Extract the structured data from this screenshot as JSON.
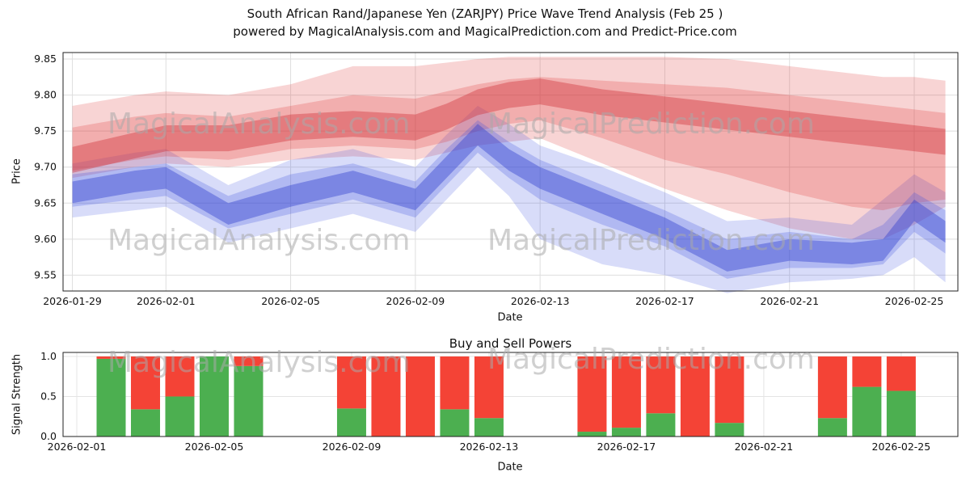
{
  "page": {
    "title_line1": "South African Rand/Japanese Yen (ZARJPY) Price Wave Trend Analysis (Feb 25 )",
    "title_line2": "powered by MagicalAnalysis.com and MagicalPrediction.com and Predict-Price.com"
  },
  "watermarks": {
    "analysis": "MagicalAnalysis.com",
    "prediction": "MagicalPrediction.com"
  },
  "chart_data": [
    {
      "type": "area",
      "title": "Price Wave Trend",
      "xlabel": "Date",
      "ylabel": "Price",
      "ylim": [
        9.528,
        9.859
      ],
      "yticks": [
        9.55,
        9.6,
        9.65,
        9.7,
        9.75,
        9.8,
        9.85
      ],
      "x_domain_days": [
        -0.3,
        28.4
      ],
      "xtick_days": [
        0,
        3,
        7,
        11,
        15,
        19,
        23,
        27
      ],
      "xtick_labels": [
        "2026-01-29",
        "2026-02-01",
        "2026-02-05",
        "2026-02-09",
        "2026-02-13",
        "2026-02-17",
        "2026-02-21",
        "2026-02-25"
      ],
      "grid": true,
      "days": [
        0,
        2,
        3,
        5,
        7,
        9,
        11,
        12,
        13,
        14,
        15,
        17,
        19,
        21,
        23,
        25,
        26,
        27,
        28
      ],
      "series": [
        {
          "name": "sell-pressure-band-outer",
          "color": "#e03c3c",
          "opacity": 0.22,
          "top": [
            9.785,
            9.8,
            9.805,
            9.8,
            9.815,
            9.84,
            9.84,
            9.845,
            9.85,
            9.853,
            9.853,
            9.853,
            9.853,
            9.85,
            9.84,
            9.83,
            9.825,
            9.825,
            9.82
          ],
          "bottom": [
            9.685,
            9.7,
            9.705,
            9.7,
            9.71,
            9.715,
            9.71,
            9.72,
            9.73,
            9.735,
            9.74,
            9.705,
            9.67,
            9.64,
            9.615,
            9.6,
            9.6,
            9.62,
            9.645
          ]
        },
        {
          "name": "buy-pressure-band-outer",
          "color": "#3c50e0",
          "opacity": 0.2,
          "top": [
            9.705,
            9.72,
            9.725,
            9.675,
            9.71,
            9.725,
            9.7,
            9.745,
            9.785,
            9.76,
            9.73,
            9.7,
            9.665,
            9.625,
            9.63,
            9.62,
            9.655,
            9.69,
            9.665
          ],
          "bottom": [
            9.63,
            9.64,
            9.645,
            9.595,
            9.615,
            9.635,
            9.61,
            9.655,
            9.7,
            9.66,
            9.6,
            9.565,
            9.55,
            9.525,
            9.54,
            9.545,
            9.55,
            9.575,
            9.54
          ]
        },
        {
          "name": "sell-pressure-band-mid",
          "color": "#e03c3c",
          "opacity": 0.25,
          "top": [
            9.755,
            9.77,
            9.775,
            9.77,
            9.785,
            9.8,
            9.795,
            9.805,
            9.815,
            9.822,
            9.825,
            9.82,
            9.815,
            9.81,
            9.8,
            9.79,
            9.785,
            9.78,
            9.775
          ],
          "bottom": [
            9.695,
            9.71,
            9.715,
            9.71,
            9.725,
            9.73,
            9.725,
            9.735,
            9.75,
            9.76,
            9.765,
            9.74,
            9.71,
            9.69,
            9.665,
            9.645,
            9.64,
            9.65,
            9.655
          ]
        },
        {
          "name": "buy-pressure-band-mid",
          "color": "#3c50e0",
          "opacity": 0.25,
          "top": [
            9.69,
            9.7,
            9.705,
            9.66,
            9.69,
            9.705,
            9.68,
            9.725,
            9.765,
            9.735,
            9.71,
            9.675,
            9.64,
            9.6,
            9.61,
            9.6,
            9.62,
            9.665,
            9.64
          ],
          "bottom": [
            9.645,
            9.655,
            9.66,
            9.615,
            9.635,
            9.655,
            9.63,
            9.675,
            9.72,
            9.685,
            9.655,
            9.62,
            9.59,
            9.545,
            9.56,
            9.56,
            9.565,
            9.61,
            9.58
          ]
        },
        {
          "name": "sell-pressure-band-core",
          "color": "#d03038",
          "opacity": 0.4,
          "top": [
            9.728,
            9.748,
            9.758,
            9.758,
            9.773,
            9.778,
            9.773,
            9.788,
            9.808,
            9.818,
            9.823,
            9.808,
            9.798,
            9.788,
            9.778,
            9.768,
            9.763,
            9.758,
            9.753
          ],
          "bottom": [
            9.692,
            9.712,
            9.722,
            9.722,
            9.737,
            9.742,
            9.737,
            9.752,
            9.772,
            9.782,
            9.787,
            9.772,
            9.762,
            9.752,
            9.742,
            9.732,
            9.727,
            9.722,
            9.717
          ]
        },
        {
          "name": "buy-pressure-band-core",
          "color": "#3040d0",
          "opacity": 0.42,
          "top": [
            9.68,
            9.695,
            9.7,
            9.65,
            9.675,
            9.695,
            9.67,
            9.715,
            9.76,
            9.725,
            9.7,
            9.665,
            9.63,
            9.585,
            9.6,
            9.595,
            9.6,
            9.655,
            9.625
          ],
          "bottom": [
            9.65,
            9.665,
            9.67,
            9.62,
            9.645,
            9.665,
            9.64,
            9.685,
            9.73,
            9.695,
            9.67,
            9.635,
            9.6,
            9.555,
            9.57,
            9.565,
            9.57,
            9.625,
            9.595
          ]
        }
      ]
    },
    {
      "type": "bar",
      "title": "Buy and Sell Powers",
      "xlabel": "Date",
      "ylabel": "Signal Strength",
      "ylim": [
        0,
        1.05
      ],
      "yticks": [
        0.0,
        0.5,
        1.0
      ],
      "x_domain_days": [
        -0.4,
        25.65
      ],
      "xtick_days": [
        0,
        4,
        8,
        12,
        16,
        20,
        24
      ],
      "xtick_labels": [
        "2026-02-01",
        "2026-02-05",
        "2026-02-09",
        "2026-02-13",
        "2026-02-17",
        "2026-02-21",
        "2026-02-25"
      ],
      "grid": true,
      "colors": {
        "buy": "#4caf50",
        "sell": "#f44336"
      },
      "bars": [
        {
          "date": "2026-02-02",
          "day": 1,
          "buy": 0.97,
          "sell": 0.03
        },
        {
          "date": "2026-02-03",
          "day": 2,
          "buy": 0.34,
          "sell": 0.66
        },
        {
          "date": "2026-02-04",
          "day": 3,
          "buy": 0.5,
          "sell": 0.5
        },
        {
          "date": "2026-02-05",
          "day": 4,
          "buy": 1.0,
          "sell": 0.0
        },
        {
          "date": "2026-02-06",
          "day": 5,
          "buy": 0.88,
          "sell": 0.12
        },
        {
          "date": "2026-02-09",
          "day": 8,
          "buy": 0.35,
          "sell": 0.65
        },
        {
          "date": "2026-02-10",
          "day": 9,
          "buy": 0.0,
          "sell": 1.0
        },
        {
          "date": "2026-02-11",
          "day": 10,
          "buy": 0.0,
          "sell": 1.0
        },
        {
          "date": "2026-02-12",
          "day": 11,
          "buy": 0.34,
          "sell": 0.66
        },
        {
          "date": "2026-02-13",
          "day": 12,
          "buy": 0.23,
          "sell": 0.77
        },
        {
          "date": "2026-02-16",
          "day": 15,
          "buy": 0.06,
          "sell": 0.94
        },
        {
          "date": "2026-02-17",
          "day": 16,
          "buy": 0.11,
          "sell": 0.89
        },
        {
          "date": "2026-02-18",
          "day": 17,
          "buy": 0.29,
          "sell": 0.71
        },
        {
          "date": "2026-02-19",
          "day": 18,
          "buy": 0.0,
          "sell": 1.0
        },
        {
          "date": "2026-02-20",
          "day": 19,
          "buy": 0.17,
          "sell": 0.83
        },
        {
          "date": "2026-02-23",
          "day": 22,
          "buy": 0.23,
          "sell": 0.77
        },
        {
          "date": "2026-02-24",
          "day": 23,
          "buy": 0.62,
          "sell": 0.38
        },
        {
          "date": "2026-02-25",
          "day": 24,
          "buy": 0.57,
          "sell": 0.43
        }
      ]
    }
  ]
}
